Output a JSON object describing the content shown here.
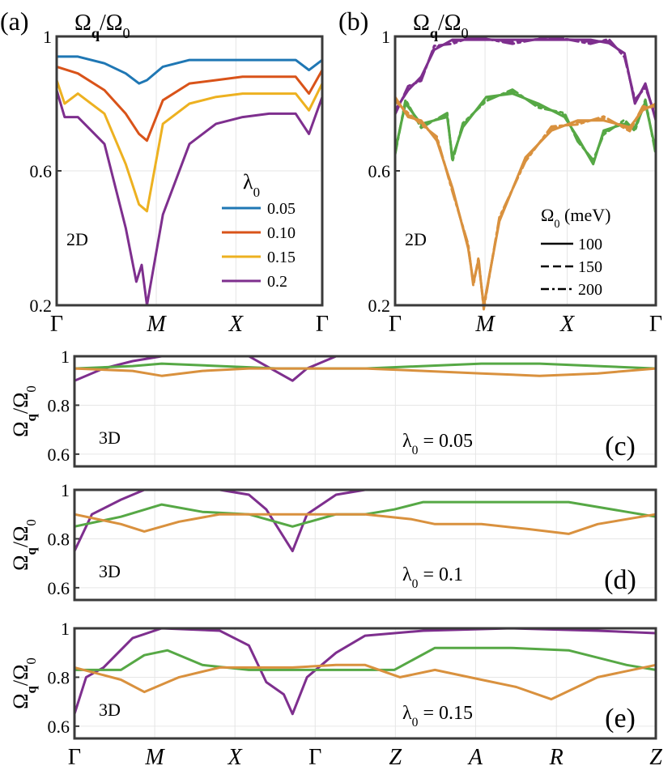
{
  "colors": {
    "blue": "#1f77b4",
    "red": "#d95319",
    "yellow": "#edb120",
    "purple": "#7e2f8e",
    "orange": "#d9913e",
    "green": "#56a845",
    "frame": "#3a3a3a"
  },
  "chart_data": [
    {
      "id": "a",
      "type": "line",
      "panel_label": "(a)",
      "ylabel": "Ω_q/Ω_0",
      "dimension_label": "2D",
      "x_ticks": [
        "Γ",
        "M",
        "X",
        "Γ"
      ],
      "y_ticks": [
        "0.2",
        "0.6",
        "1"
      ],
      "ylim": [
        0.2,
        1
      ],
      "legend": {
        "title": "λ_0",
        "position": "center-right",
        "entries": [
          "0.05",
          "0.10",
          "0.15",
          "0.2"
        ]
      },
      "series": [
        {
          "name": "0.05",
          "color": "blue",
          "style": "solid",
          "x": [
            0,
            0.08,
            0.18,
            0.26,
            0.31,
            0.34,
            0.4,
            0.5,
            0.6,
            0.7,
            0.8,
            0.9,
            0.95,
            1.0
          ],
          "y": [
            0.94,
            0.94,
            0.92,
            0.89,
            0.86,
            0.87,
            0.91,
            0.93,
            0.93,
            0.93,
            0.93,
            0.93,
            0.9,
            0.93
          ]
        },
        {
          "name": "0.10",
          "color": "red",
          "style": "solid",
          "x": [
            0,
            0.08,
            0.18,
            0.26,
            0.31,
            0.34,
            0.4,
            0.5,
            0.6,
            0.7,
            0.8,
            0.9,
            0.95,
            1.0
          ],
          "y": [
            0.91,
            0.89,
            0.84,
            0.77,
            0.71,
            0.69,
            0.81,
            0.86,
            0.87,
            0.88,
            0.88,
            0.88,
            0.83,
            0.9
          ]
        },
        {
          "name": "0.15",
          "color": "yellow",
          "style": "solid",
          "x": [
            0,
            0.03,
            0.08,
            0.18,
            0.26,
            0.31,
            0.34,
            0.4,
            0.5,
            0.6,
            0.7,
            0.8,
            0.9,
            0.95,
            1.0
          ],
          "y": [
            0.87,
            0.8,
            0.83,
            0.77,
            0.62,
            0.5,
            0.48,
            0.74,
            0.8,
            0.82,
            0.83,
            0.83,
            0.83,
            0.78,
            0.86
          ]
        },
        {
          "name": "0.2",
          "color": "purple",
          "style": "solid",
          "x": [
            0,
            0.03,
            0.08,
            0.18,
            0.26,
            0.3,
            0.32,
            0.34,
            0.4,
            0.5,
            0.6,
            0.7,
            0.8,
            0.9,
            0.95,
            1.0
          ],
          "y": [
            0.84,
            0.76,
            0.76,
            0.68,
            0.43,
            0.27,
            0.32,
            0.2,
            0.47,
            0.68,
            0.74,
            0.76,
            0.77,
            0.77,
            0.71,
            0.82
          ]
        }
      ]
    },
    {
      "id": "b",
      "type": "line",
      "panel_label": "(b)",
      "ylabel": "Ω_q/Ω_0",
      "dimension_label": "2D",
      "x_ticks": [
        "Γ",
        "M",
        "X",
        "Γ"
      ],
      "y_ticks": [
        "0.2",
        "0.6",
        "1"
      ],
      "ylim": [
        0.2,
        1
      ],
      "legend": {
        "title": "Ω_0 (meV)",
        "position": "center-right",
        "entries": [
          {
            "label": "100",
            "style": "solid"
          },
          {
            "label": "150",
            "style": "dashed"
          },
          {
            "label": "200",
            "style": "dash-dot"
          }
        ]
      },
      "series": [
        {
          "name": "purple",
          "color": "purple",
          "x": [
            0,
            0.05,
            0.1,
            0.15,
            0.22,
            0.3,
            0.45,
            0.6,
            0.75,
            0.82,
            0.88,
            0.92,
            0.96,
            1.0
          ],
          "y": [
            0.78,
            0.84,
            0.88,
            0.96,
            0.99,
            0.99,
            0.99,
            0.99,
            0.99,
            0.98,
            0.95,
            0.8,
            0.86,
            0.75
          ]
        },
        {
          "name": "green",
          "color": "green",
          "x": [
            0,
            0.04,
            0.1,
            0.2,
            0.22,
            0.26,
            0.35,
            0.45,
            0.55,
            0.65,
            0.7,
            0.76,
            0.8,
            0.88,
            0.92,
            0.96,
            1.0
          ],
          "y": [
            0.66,
            0.8,
            0.74,
            0.76,
            0.64,
            0.73,
            0.82,
            0.83,
            0.8,
            0.76,
            0.7,
            0.62,
            0.72,
            0.74,
            0.73,
            0.8,
            0.66
          ]
        },
        {
          "name": "orange",
          "color": "orange",
          "x": [
            0,
            0.05,
            0.1,
            0.16,
            0.22,
            0.28,
            0.3,
            0.32,
            0.34,
            0.4,
            0.5,
            0.6,
            0.7,
            0.8,
            0.9,
            0.95,
            1.0
          ],
          "y": [
            0.82,
            0.76,
            0.75,
            0.69,
            0.55,
            0.37,
            0.27,
            0.33,
            0.2,
            0.45,
            0.64,
            0.72,
            0.75,
            0.75,
            0.73,
            0.78,
            0.8
          ]
        }
      ]
    },
    {
      "id": "c",
      "type": "line",
      "panel_label": "(c)",
      "ylabel": "Ω_q/Ω_0",
      "dimension_label": "3D",
      "annotation": "λ_0 = 0.05",
      "y_ticks": [
        "0.6",
        "0.8",
        "1"
      ],
      "ylim": [
        0.55,
        1
      ],
      "series": [
        {
          "name": "purple",
          "color": "purple",
          "x": [
            0,
            0.05,
            0.1,
            0.15,
            0.25,
            0.3,
            0.33,
            0.375,
            0.4,
            0.45,
            0.5,
            0.6,
            0.75,
            0.9,
            1.0
          ],
          "y": [
            0.9,
            0.95,
            0.98,
            1.0,
            1.0,
            1.0,
            0.96,
            0.9,
            0.95,
            1.0,
            1.0,
            1.0,
            1.0,
            1.0,
            1.0
          ]
        },
        {
          "name": "green",
          "color": "green",
          "x": [
            0,
            0.1,
            0.15,
            0.25,
            0.35,
            0.45,
            0.5,
            0.6,
            0.7,
            0.8,
            0.9,
            1.0
          ],
          "y": [
            0.95,
            0.96,
            0.97,
            0.96,
            0.95,
            0.95,
            0.95,
            0.96,
            0.97,
            0.97,
            0.96,
            0.95
          ]
        },
        {
          "name": "orange",
          "color": "orange",
          "x": [
            0,
            0.1,
            0.15,
            0.22,
            0.3,
            0.4,
            0.5,
            0.6,
            0.7,
            0.8,
            0.9,
            1.0
          ],
          "y": [
            0.95,
            0.94,
            0.92,
            0.94,
            0.95,
            0.95,
            0.95,
            0.94,
            0.93,
            0.92,
            0.93,
            0.95
          ]
        }
      ]
    },
    {
      "id": "d",
      "type": "line",
      "panel_label": "(d)",
      "ylabel": "Ω_q/Ω_0",
      "dimension_label": "3D",
      "annotation": "λ_0 = 0.1",
      "y_ticks": [
        "0.6",
        "0.8",
        "1"
      ],
      "ylim": [
        0.55,
        1
      ],
      "series": [
        {
          "name": "purple",
          "color": "purple",
          "x": [
            0,
            0.03,
            0.08,
            0.12,
            0.25,
            0.3,
            0.33,
            0.375,
            0.4,
            0.45,
            0.5,
            0.6,
            0.75,
            0.9,
            1.0
          ],
          "y": [
            0.75,
            0.9,
            0.96,
            1.0,
            1.0,
            0.98,
            0.92,
            0.75,
            0.9,
            0.98,
            1.0,
            1.0,
            1.0,
            1.0,
            1.0
          ]
        },
        {
          "name": "green",
          "color": "green",
          "x": [
            0,
            0.08,
            0.15,
            0.22,
            0.3,
            0.375,
            0.45,
            0.5,
            0.55,
            0.6,
            0.75,
            0.85,
            0.95,
            1.0
          ],
          "y": [
            0.85,
            0.89,
            0.94,
            0.91,
            0.9,
            0.85,
            0.9,
            0.9,
            0.92,
            0.95,
            0.95,
            0.95,
            0.91,
            0.89
          ]
        },
        {
          "name": "orange",
          "color": "orange",
          "x": [
            0,
            0.08,
            0.12,
            0.18,
            0.25,
            0.375,
            0.45,
            0.5,
            0.58,
            0.62,
            0.7,
            0.78,
            0.85,
            0.9,
            1.0
          ],
          "y": [
            0.9,
            0.86,
            0.83,
            0.87,
            0.9,
            0.9,
            0.9,
            0.9,
            0.88,
            0.86,
            0.86,
            0.84,
            0.82,
            0.86,
            0.9
          ]
        }
      ]
    },
    {
      "id": "e",
      "type": "line",
      "panel_label": "(e)",
      "ylabel": "Ω_q/Ω_0",
      "dimension_label": "3D",
      "annotation": "λ_0 = 0.15",
      "x_ticks": [
        "Γ",
        "M",
        "X",
        "Γ",
        "Z",
        "A",
        "R",
        "Z"
      ],
      "y_ticks": [
        "0.6",
        "0.8",
        "1"
      ],
      "ylim": [
        0.55,
        1
      ],
      "series": [
        {
          "name": "purple",
          "color": "purple",
          "x": [
            0,
            0.02,
            0.05,
            0.1,
            0.15,
            0.25,
            0.3,
            0.33,
            0.36,
            0.375,
            0.4,
            0.45,
            0.5,
            0.6,
            0.75,
            0.9,
            1.0
          ],
          "y": [
            0.65,
            0.8,
            0.84,
            0.96,
            1.0,
            0.99,
            0.93,
            0.78,
            0.73,
            0.65,
            0.8,
            0.9,
            0.97,
            0.99,
            1.0,
            0.99,
            0.98
          ]
        },
        {
          "name": "green",
          "color": "green",
          "x": [
            0,
            0.08,
            0.12,
            0.16,
            0.22,
            0.3,
            0.375,
            0.45,
            0.55,
            0.62,
            0.75,
            0.85,
            0.95,
            1.0
          ],
          "y": [
            0.83,
            0.83,
            0.89,
            0.91,
            0.85,
            0.83,
            0.83,
            0.83,
            0.83,
            0.92,
            0.92,
            0.91,
            0.85,
            0.83
          ]
        },
        {
          "name": "orange",
          "color": "orange",
          "x": [
            0,
            0.08,
            0.12,
            0.18,
            0.25,
            0.375,
            0.45,
            0.5,
            0.56,
            0.62,
            0.7,
            0.76,
            0.82,
            0.9,
            1.0
          ],
          "y": [
            0.84,
            0.79,
            0.74,
            0.8,
            0.84,
            0.84,
            0.85,
            0.85,
            0.8,
            0.83,
            0.79,
            0.76,
            0.71,
            0.8,
            0.85
          ]
        }
      ]
    }
  ]
}
